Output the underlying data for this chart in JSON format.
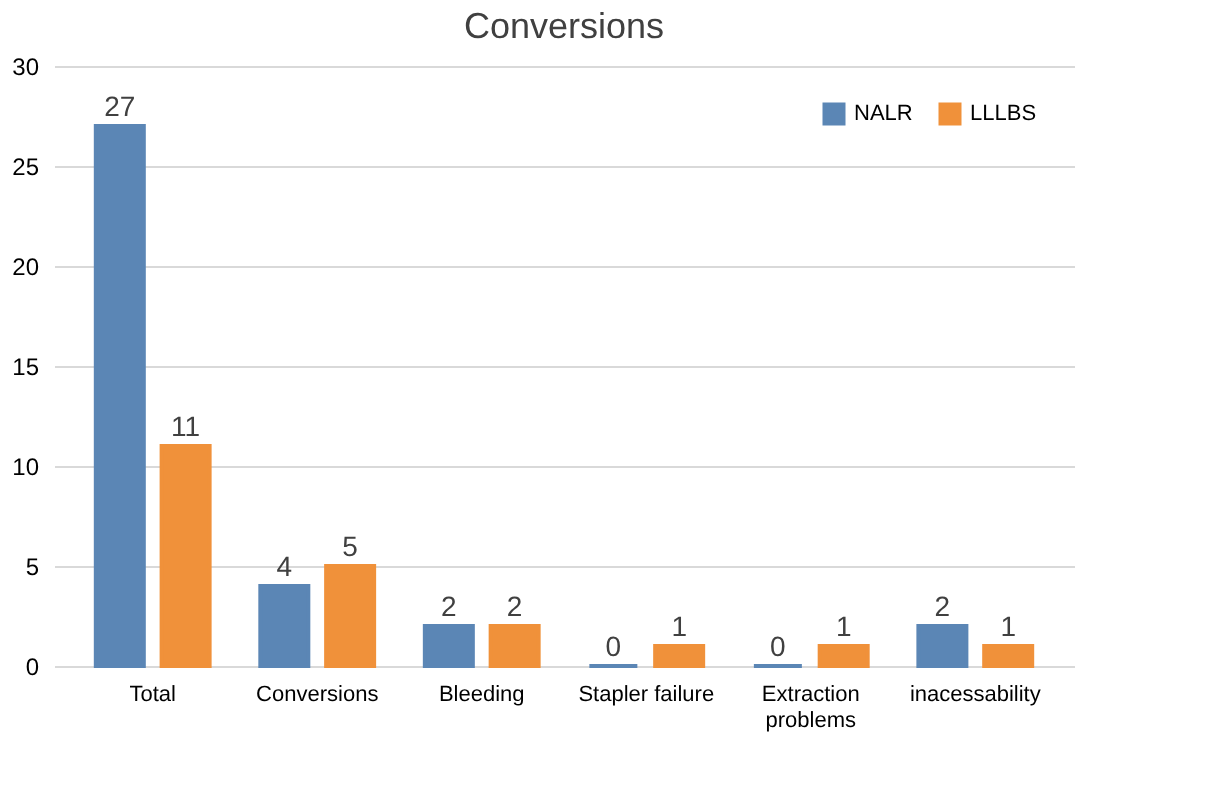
{
  "chart_data": {
    "type": "bar",
    "title": "Conversions",
    "categories": [
      "Total",
      "Conversions",
      "Bleeding",
      "Stapler failure",
      "Extraction problems",
      "inacessability"
    ],
    "series": [
      {
        "name": "NALR",
        "color": "#5b86b5",
        "values": [
          27,
          4,
          2,
          0,
          0,
          2
        ]
      },
      {
        "name": "LLLBS",
        "color": "#f0913a",
        "values": [
          11,
          5,
          2,
          1,
          1,
          1
        ]
      }
    ],
    "ylim": [
      0,
      30
    ],
    "yticks": [
      0,
      5,
      10,
      15,
      20,
      25,
      30
    ],
    "grid": "y",
    "legend": "top right",
    "data_labels": true
  }
}
